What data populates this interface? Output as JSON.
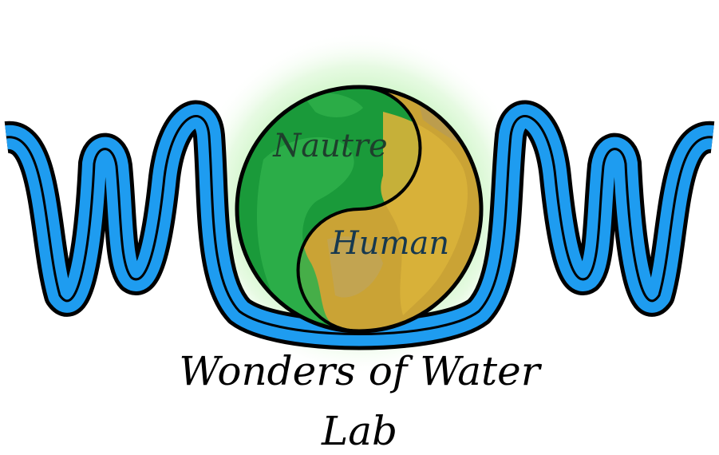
{
  "logo": {
    "globe_label_top": "Nautre",
    "globe_label_bottom": "Human",
    "caption_line1": "Wonders of Water",
    "caption_line2": "Lab",
    "colors": {
      "water_blue": "#1e9cf0",
      "outline": "#000000",
      "land_green": "#2fb04b",
      "ocean_green": "#1a9a3a",
      "land_gold": "#d9b23a",
      "ocean_gold": "#caa335",
      "label_green_side": "#1e3f2c",
      "label_gold_side": "#16384f",
      "glow": "#b7f2ad"
    },
    "icons": [
      "water-wave-icon",
      "yin-yang-globe-icon"
    ]
  }
}
